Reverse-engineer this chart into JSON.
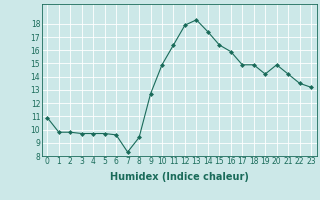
{
  "x": [
    0,
    1,
    2,
    3,
    4,
    5,
    6,
    7,
    8,
    9,
    10,
    11,
    12,
    13,
    14,
    15,
    16,
    17,
    18,
    19,
    20,
    21,
    22,
    23
  ],
  "y": [
    10.9,
    9.8,
    9.8,
    9.7,
    9.7,
    9.7,
    9.6,
    8.3,
    9.4,
    12.7,
    14.9,
    16.4,
    17.9,
    18.3,
    17.4,
    16.4,
    15.9,
    14.9,
    14.9,
    14.2,
    14.9,
    14.2,
    13.5,
    13.2
  ],
  "line_color": "#1a6b5a",
  "marker": "D",
  "marker_size": 2.0,
  "bg_color": "#cce8e8",
  "grid_color": "#ffffff",
  "xlabel": "Humidex (Indice chaleur)",
  "ylim": [
    8,
    19
  ],
  "xlim": [
    -0.5,
    23.5
  ],
  "yticks": [
    8,
    9,
    10,
    11,
    12,
    13,
    14,
    15,
    16,
    17,
    18
  ],
  "xticks": [
    0,
    1,
    2,
    3,
    4,
    5,
    6,
    7,
    8,
    9,
    10,
    11,
    12,
    13,
    14,
    15,
    16,
    17,
    18,
    19,
    20,
    21,
    22,
    23
  ],
  "tick_fontsize": 5.5,
  "xlabel_fontsize": 7.0,
  "linewidth": 0.8
}
